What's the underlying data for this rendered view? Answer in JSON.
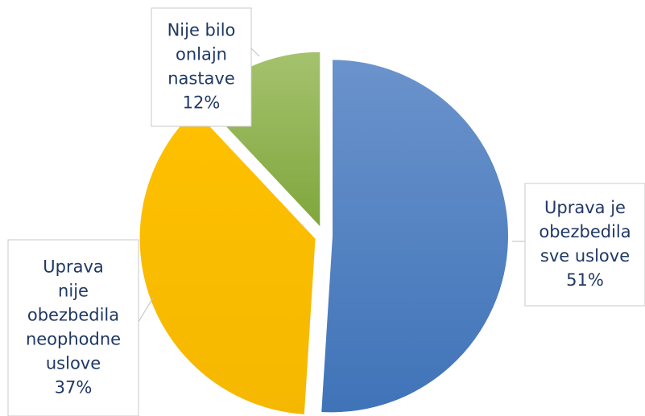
{
  "chart_data": {
    "type": "pie",
    "categories": [
      "Uprava je obezbedila sve uslove",
      "Uprava nije obezbedila neophodne uslove",
      "Nije bilo onlajn nastave"
    ],
    "values": [
      51,
      37,
      12
    ],
    "value_labels": [
      "51%",
      "37%",
      "12%"
    ],
    "colors": [
      "#4a7fc1",
      "#ffc000",
      "#8db04a"
    ]
  }
}
